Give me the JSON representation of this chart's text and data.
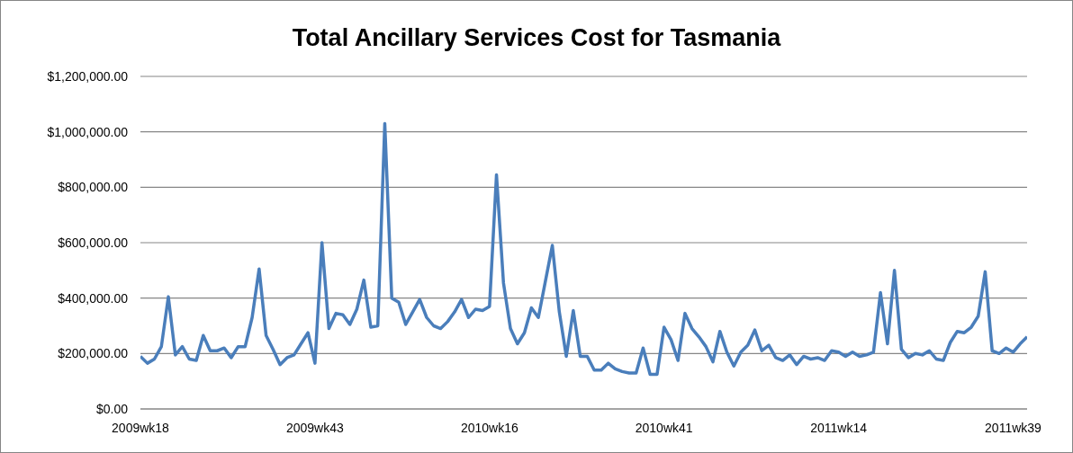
{
  "chart_data": {
    "type": "line",
    "title": "Total Ancillary Services Cost for Tasmania",
    "categories": [
      "2009wk18",
      null,
      null,
      null,
      null,
      null,
      null,
      null,
      null,
      null,
      null,
      null,
      null,
      null,
      null,
      null,
      null,
      null,
      null,
      null,
      null,
      null,
      null,
      null,
      null,
      "2009wk43",
      null,
      null,
      null,
      null,
      null,
      null,
      null,
      null,
      null,
      null,
      null,
      null,
      null,
      null,
      null,
      null,
      null,
      null,
      null,
      null,
      null,
      null,
      null,
      null,
      "2010wk16",
      null,
      null,
      null,
      null,
      null,
      null,
      null,
      null,
      null,
      null,
      null,
      null,
      null,
      null,
      null,
      null,
      null,
      null,
      null,
      null,
      null,
      null,
      null,
      null,
      "2010wk41",
      null,
      null,
      null,
      null,
      null,
      null,
      null,
      null,
      null,
      null,
      null,
      null,
      null,
      null,
      null,
      null,
      null,
      null,
      null,
      null,
      null,
      null,
      null,
      null,
      "2011wk14",
      null,
      null,
      null,
      null,
      null,
      null,
      null,
      null,
      null,
      null,
      null,
      null,
      null,
      null,
      null,
      null,
      null,
      null,
      null,
      null,
      null,
      null,
      null,
      null,
      "2011wk39",
      null,
      null
    ],
    "series": [
      {
        "color": "#4a7ebb",
        "values": [
          190000,
          165000,
          180000,
          225000,
          405000,
          195000,
          225000,
          180000,
          175000,
          265000,
          210000,
          210000,
          220000,
          185000,
          225000,
          225000,
          330000,
          505000,
          265000,
          215000,
          160000,
          185000,
          195000,
          235000,
          275000,
          165000,
          600000,
          290000,
          345000,
          340000,
          305000,
          360000,
          465000,
          295000,
          300000,
          1030000,
          400000,
          385000,
          305000,
          350000,
          395000,
          330000,
          300000,
          290000,
          315000,
          350000,
          395000,
          330000,
          360000,
          355000,
          370000,
          845000,
          455000,
          290000,
          235000,
          275000,
          365000,
          330000,
          460000,
          590000,
          350000,
          190000,
          355000,
          190000,
          190000,
          140000,
          140000,
          165000,
          145000,
          135000,
          130000,
          130000,
          220000,
          125000,
          125000,
          295000,
          250000,
          175000,
          345000,
          290000,
          260000,
          225000,
          170000,
          280000,
          205000,
          155000,
          205000,
          230000,
          285000,
          210000,
          230000,
          185000,
          175000,
          195000,
          160000,
          190000,
          180000,
          185000,
          175000,
          210000,
          205000,
          190000,
          205000,
          190000,
          195000,
          205000,
          420000,
          235000,
          500000,
          215000,
          185000,
          200000,
          195000,
          210000,
          180000,
          175000,
          240000,
          280000,
          275000,
          295000,
          335000,
          495000,
          210000,
          200000,
          220000,
          205000,
          235000,
          260000
        ]
      }
    ],
    "ylim": [
      0,
      1200000
    ],
    "yticks": [
      {
        "value": 0,
        "label": "$0.00"
      },
      {
        "value": 200000,
        "label": "$200,000.00"
      },
      {
        "value": 400000,
        "label": "$400,000.00"
      },
      {
        "value": 600000,
        "label": "$600,000.00"
      },
      {
        "value": 800000,
        "label": "$800,000.00"
      },
      {
        "value": 1000000,
        "label": "$1,000,000.00"
      },
      {
        "value": 1200000,
        "label": "$1,200,000.00"
      }
    ],
    "grid": "y",
    "legend": false,
    "marker": "none",
    "line_style": "solid"
  }
}
